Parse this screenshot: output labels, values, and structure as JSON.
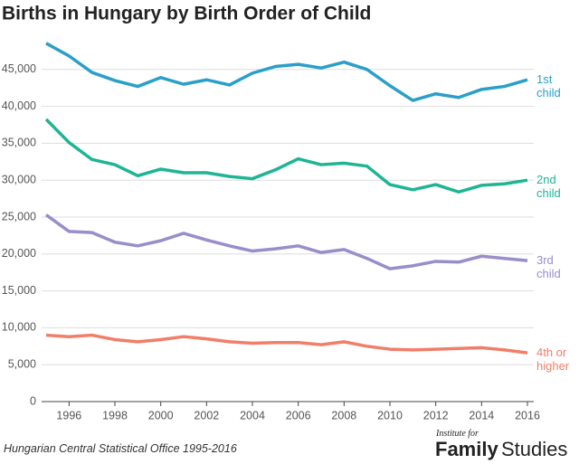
{
  "chart_data": {
    "type": "line",
    "title": "Births in Hungary by Birth Order of Child",
    "x": [
      1995,
      1996,
      1997,
      1998,
      1999,
      2000,
      2001,
      2002,
      2003,
      2004,
      2005,
      2006,
      2007,
      2008,
      2009,
      2010,
      2011,
      2012,
      2013,
      2014,
      2015,
      2016
    ],
    "xlim": [
      1995,
      2016
    ],
    "xticks": [
      1996,
      1998,
      2000,
      2002,
      2004,
      2006,
      2008,
      2010,
      2012,
      2014,
      2016
    ],
    "ylim": [
      0,
      50000
    ],
    "yticks": [
      0,
      {
        "value": 5000,
        "label": "5,000"
      },
      {
        "value": 10000,
        "label": "10,000"
      },
      {
        "value": 15000,
        "label": "15,000"
      },
      {
        "value": 20000,
        "label": "20,000"
      },
      {
        "value": 25000,
        "label": "25,000"
      },
      {
        "value": 30000,
        "label": "30,000"
      },
      {
        "value": 35000,
        "label": "35,000"
      },
      {
        "value": 40000,
        "label": "40,000"
      },
      {
        "value": 45000,
        "label": "45,000"
      }
    ],
    "grid": true,
    "series": [
      {
        "name": "1st child",
        "color": "#2a9fc9",
        "values": [
          48550,
          46830,
          44600,
          43500,
          42700,
          43900,
          43000,
          43600,
          42900,
          44500,
          45400,
          45700,
          45200,
          46000,
          45000,
          42800,
          40800,
          41700,
          41200,
          42300,
          42700,
          43600
        ]
      },
      {
        "name": "2nd child",
        "color": "#1db594",
        "values": [
          38250,
          35100,
          32800,
          32100,
          30600,
          31500,
          31000,
          31000,
          30500,
          30200,
          31400,
          32900,
          32100,
          32300,
          31900,
          29400,
          28700,
          29400,
          28400,
          29300,
          29500,
          30000
        ]
      },
      {
        "name": "3rd child",
        "color": "#9a8dca",
        "values": [
          25300,
          23050,
          22900,
          21600,
          21100,
          21800,
          22800,
          21900,
          21100,
          20400,
          20700,
          21100,
          20200,
          20600,
          19400,
          18000,
          18400,
          19000,
          18900,
          19700,
          19400,
          19100
        ]
      },
      {
        "name": "4th or higher",
        "color": "#f17e68",
        "values": [
          9000,
          8800,
          9000,
          8400,
          8100,
          8400,
          8800,
          8500,
          8100,
          7900,
          8000,
          8000,
          7700,
          8100,
          7500,
          7100,
          7000,
          7100,
          7200,
          7300,
          7000,
          6600
        ]
      }
    ],
    "source": "Hungarian Central Statistical Office 1995-2016"
  },
  "logo": {
    "top": "Institute for",
    "word1": "Family",
    "word2": "Studies"
  }
}
